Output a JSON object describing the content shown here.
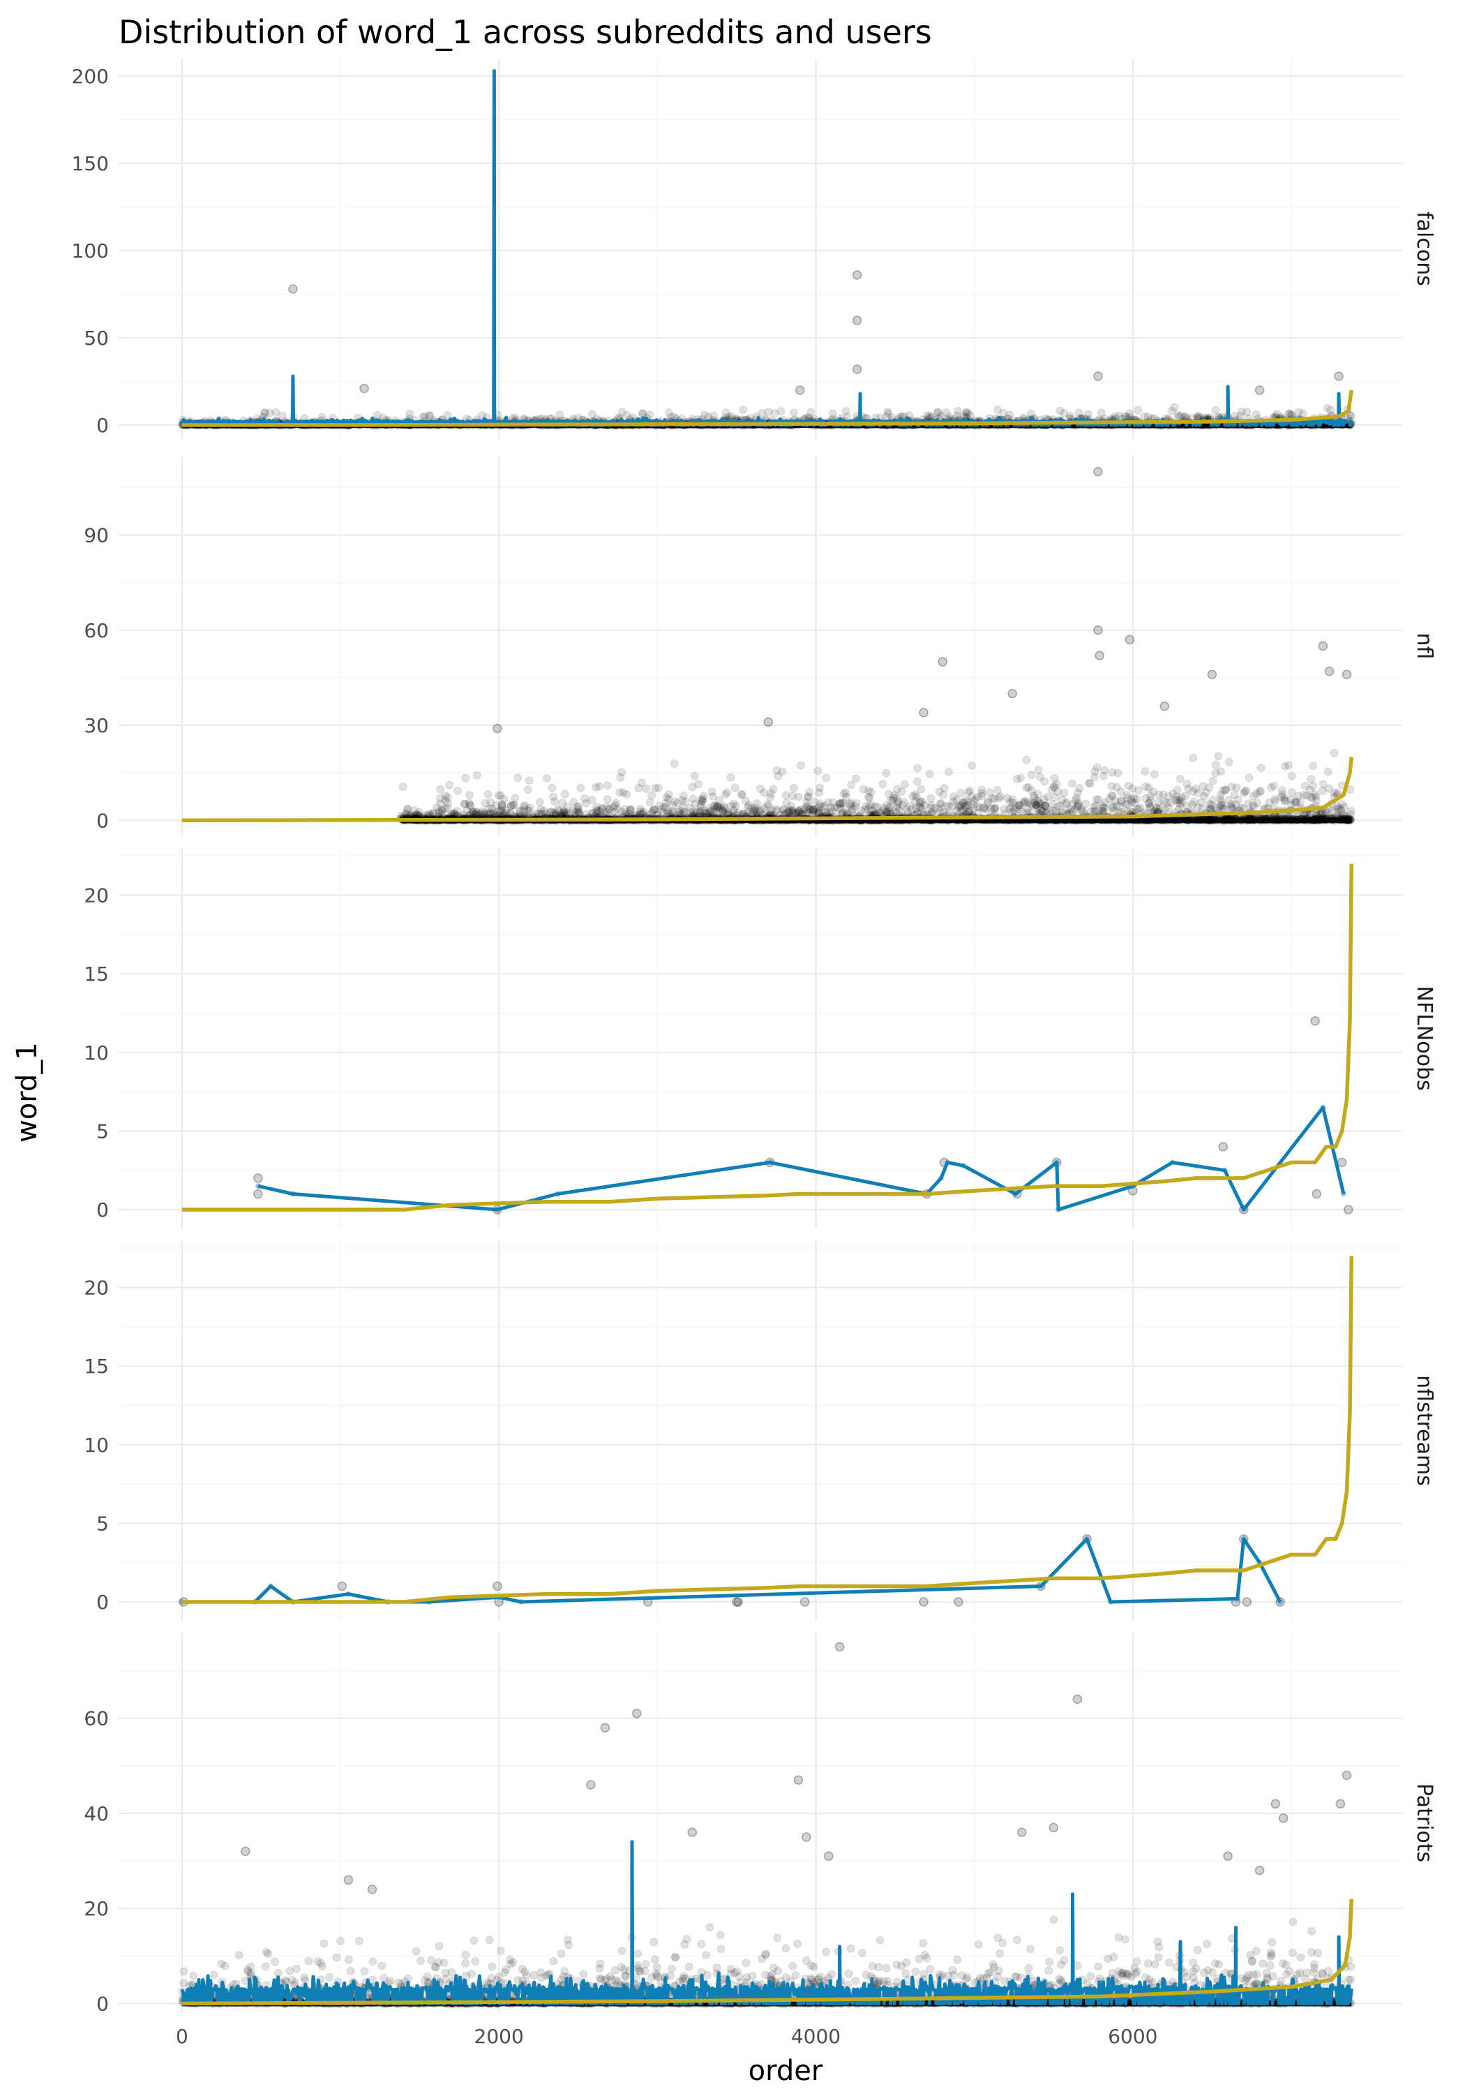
{
  "chart_data": {
    "type": "line",
    "title": "Distribution of word_1 across subreddits and users",
    "xlabel": "order",
    "ylabel": "word_1",
    "xlim": [
      -400,
      7700
    ],
    "x_ticks": [
      0,
      2000,
      4000,
      6000
    ],
    "x_tick_labels": [
      "0",
      "2000",
      "4000",
      "6000"
    ],
    "grid": true,
    "colors": {
      "points": "#000000",
      "user_line": "#0f7fb5",
      "sorted_line": "#c4a91b",
      "grid": "#ebebeb",
      "text": "#4d4d4d"
    },
    "panels": [
      {
        "strip": "falcons",
        "ylim": [
          -8,
          210
        ],
        "y_ticks": [
          0,
          50,
          100,
          150,
          200
        ],
        "y_tick_labels": [
          "0",
          "50",
          "100",
          "150",
          "200"
        ],
        "noise": {
          "seed": 11,
          "n": 2600,
          "x_from": 0,
          "x_to": 7380,
          "base_start": 1.2,
          "base_end": 4.5,
          "spread": 7,
          "max_y": 30,
          "opacity": 0.12
        },
        "outliers": [
          [
            700,
            78
          ],
          [
            4260,
            86
          ],
          [
            4260,
            60
          ],
          [
            4260,
            32
          ],
          [
            5780,
            28
          ],
          [
            3900,
            20
          ],
          [
            1150,
            21
          ],
          [
            6800,
            20
          ],
          [
            7300,
            28
          ]
        ],
        "user_line": {
          "kind": "spiky",
          "seed": 5,
          "n": 700,
          "x_from": 0,
          "x_to": 7380,
          "base": 2,
          "amp": 5,
          "spikes": [
            [
              700,
              28
            ],
            [
              1970,
              203
            ],
            [
              4280,
              18
            ],
            [
              6600,
              22
            ],
            [
              7300,
              18
            ]
          ]
        },
        "sorted_line": [
          [
            0,
            0
          ],
          [
            1400,
            0.1
          ],
          [
            3000,
            0.5
          ],
          [
            5000,
            1
          ],
          [
            6500,
            2
          ],
          [
            7000,
            3
          ],
          [
            7300,
            5
          ],
          [
            7360,
            8
          ],
          [
            7380,
            20
          ]
        ]
      },
      {
        "strip": "nfl",
        "ylim": [
          -5,
          115
        ],
        "y_ticks": [
          0,
          30,
          60,
          90
        ],
        "y_tick_labels": [
          "0",
          "30",
          "60",
          "90"
        ],
        "noise": {
          "seed": 23,
          "n": 3200,
          "x_from": 1380,
          "x_to": 7380,
          "base_start": 2,
          "base_end": 10,
          "spread": 14,
          "max_y": 40,
          "opacity": 0.12
        },
        "outliers": [
          [
            5780,
            110
          ],
          [
            5780,
            60
          ],
          [
            5790,
            52
          ],
          [
            5980,
            57
          ],
          [
            4800,
            50
          ],
          [
            7200,
            55
          ],
          [
            7240,
            47
          ],
          [
            6500,
            46
          ],
          [
            7350,
            46
          ],
          [
            3700,
            31
          ],
          [
            1990,
            29
          ],
          [
            4680,
            34
          ],
          [
            5240,
            40
          ],
          [
            6200,
            36
          ]
        ],
        "user_line": null,
        "sorted_line": [
          [
            0,
            0
          ],
          [
            1400,
            0.1
          ],
          [
            3000,
            0.3
          ],
          [
            4500,
            0.8
          ],
          [
            6000,
            1.2
          ],
          [
            6800,
            2.5
          ],
          [
            7200,
            4
          ],
          [
            7330,
            8
          ],
          [
            7370,
            15
          ],
          [
            7380,
            20
          ]
        ]
      },
      {
        "strip": "NFLNoobs",
        "ylim": [
          -1.2,
          23
        ],
        "y_ticks": [
          0,
          5,
          10,
          15,
          20
        ],
        "y_tick_labels": [
          "0",
          "5",
          "10",
          "15",
          "20"
        ],
        "noise": null,
        "outliers": [
          [
            480,
            2
          ],
          [
            480,
            1
          ],
          [
            1990,
            0
          ],
          [
            3710,
            3
          ],
          [
            4700,
            1
          ],
          [
            4810,
            3
          ],
          [
            5270,
            1
          ],
          [
            5520,
            3
          ],
          [
            6000,
            1.2
          ],
          [
            6570,
            4
          ],
          [
            6700,
            0
          ],
          [
            7150,
            12
          ],
          [
            7160,
            1
          ],
          [
            7320,
            3
          ],
          [
            7360,
            0
          ]
        ],
        "user_line": {
          "kind": "path",
          "points": [
            [
              480,
              1.5
            ],
            [
              700,
              1
            ],
            [
              1990,
              0
            ],
            [
              2370,
              1
            ],
            [
              3710,
              3
            ],
            [
              4700,
              1
            ],
            [
              4790,
              2
            ],
            [
              4830,
              3
            ],
            [
              4930,
              2.8
            ],
            [
              5260,
              1
            ],
            [
              5520,
              3
            ],
            [
              5530,
              0
            ],
            [
              6000,
              1.5
            ],
            [
              6250,
              3
            ],
            [
              6580,
              2.5
            ],
            [
              6700,
              0
            ],
            [
              7200,
              6.5
            ],
            [
              7330,
              1
            ]
          ]
        },
        "sorted_line": [
          [
            0,
            0
          ],
          [
            1400,
            0
          ],
          [
            1700,
            0.3
          ],
          [
            2300,
            0.5
          ],
          [
            2700,
            0.5
          ],
          [
            3000,
            0.7
          ],
          [
            3700,
            0.9
          ],
          [
            3900,
            1
          ],
          [
            4700,
            1
          ],
          [
            5000,
            1.2
          ],
          [
            5500,
            1.5
          ],
          [
            5800,
            1.5
          ],
          [
            6200,
            1.8
          ],
          [
            6400,
            2
          ],
          [
            6700,
            2
          ],
          [
            7000,
            3
          ],
          [
            7150,
            3
          ],
          [
            7220,
            4
          ],
          [
            7280,
            4
          ],
          [
            7320,
            5
          ],
          [
            7350,
            7
          ],
          [
            7370,
            12
          ],
          [
            7380,
            22
          ]
        ]
      },
      {
        "strip": "nflstreams",
        "ylim": [
          -1.2,
          23
        ],
        "y_ticks": [
          0,
          5,
          10,
          15,
          20
        ],
        "y_tick_labels": [
          "0",
          "5",
          "10",
          "15",
          "20"
        ],
        "noise": null,
        "outliers": [
          [
            10,
            0
          ],
          [
            1010,
            1
          ],
          [
            1990,
            1
          ],
          [
            2000,
            0
          ],
          [
            2940,
            0
          ],
          [
            3500,
            0
          ],
          [
            3510,
            0
          ],
          [
            3930,
            0
          ],
          [
            4680,
            0
          ],
          [
            4900,
            0
          ],
          [
            5420,
            1
          ],
          [
            5710,
            4
          ],
          [
            6650,
            0
          ],
          [
            6700,
            4
          ],
          [
            6720,
            0
          ],
          [
            6930,
            0
          ]
        ],
        "user_line": {
          "kind": "path",
          "points": [
            [
              0,
              0
            ],
            [
              460,
              0
            ],
            [
              560,
              1
            ],
            [
              700,
              0
            ],
            [
              1050,
              0.5
            ],
            [
              1300,
              0
            ],
            [
              1560,
              0
            ],
            [
              2000,
              0.3
            ],
            [
              2140,
              0
            ],
            [
              5420,
              1
            ],
            [
              5710,
              4
            ],
            [
              5860,
              0
            ],
            [
              6660,
              0.2
            ],
            [
              6700,
              4
            ],
            [
              6800,
              2.5
            ],
            [
              6930,
              0
            ]
          ]
        },
        "sorted_line": [
          [
            0,
            0
          ],
          [
            1400,
            0
          ],
          [
            1700,
            0.3
          ],
          [
            2300,
            0.5
          ],
          [
            2700,
            0.5
          ],
          [
            3000,
            0.7
          ],
          [
            3700,
            0.9
          ],
          [
            3900,
            1
          ],
          [
            4700,
            1
          ],
          [
            5000,
            1.2
          ],
          [
            5500,
            1.5
          ],
          [
            5800,
            1.5
          ],
          [
            6200,
            1.8
          ],
          [
            6400,
            2
          ],
          [
            6700,
            2
          ],
          [
            7000,
            3
          ],
          [
            7150,
            3
          ],
          [
            7220,
            4
          ],
          [
            7280,
            4
          ],
          [
            7320,
            5
          ],
          [
            7350,
            7
          ],
          [
            7370,
            12
          ],
          [
            7380,
            22
          ]
        ]
      },
      {
        "strip": "Patriots",
        "ylim": [
          -2,
          78
        ],
        "y_ticks": [
          0,
          20,
          40,
          60
        ],
        "y_tick_labels": [
          "0",
          "20",
          "40",
          "60"
        ],
        "noise": {
          "seed": 47,
          "n": 3000,
          "x_from": 0,
          "x_to": 7380,
          "base_start": 4,
          "base_end": 7,
          "spread": 12,
          "max_y": 30,
          "opacity": 0.12
        },
        "outliers": [
          [
            4150,
            75
          ],
          [
            5650,
            64
          ],
          [
            2870,
            61
          ],
          [
            2670,
            58
          ],
          [
            2580,
            46
          ],
          [
            3890,
            47
          ],
          [
            7350,
            48
          ],
          [
            7310,
            42
          ],
          [
            6900,
            42
          ],
          [
            6950,
            39
          ],
          [
            3220,
            36
          ],
          [
            5300,
            36
          ],
          [
            5500,
            37
          ],
          [
            400,
            32
          ],
          [
            3940,
            35
          ],
          [
            4080,
            31
          ],
          [
            6600,
            31
          ],
          [
            6800,
            28
          ],
          [
            1050,
            26
          ],
          [
            1200,
            24
          ]
        ],
        "user_line": {
          "kind": "spiky",
          "seed": 9,
          "n": 900,
          "x_from": 0,
          "x_to": 7380,
          "base": 3,
          "amp": 7,
          "spikes": [
            [
              2840,
              34
            ],
            [
              5620,
              23
            ],
            [
              6650,
              16
            ],
            [
              6300,
              13
            ],
            [
              4150,
              12
            ],
            [
              7300,
              14
            ]
          ]
        },
        "sorted_line": [
          [
            0,
            0
          ],
          [
            1400,
            0.2
          ],
          [
            3000,
            0.5
          ],
          [
            4500,
            1
          ],
          [
            5800,
            1.5
          ],
          [
            6500,
            2.5
          ],
          [
            7000,
            3.5
          ],
          [
            7250,
            5
          ],
          [
            7340,
            8
          ],
          [
            7370,
            14
          ],
          [
            7380,
            22
          ]
        ]
      }
    ]
  }
}
